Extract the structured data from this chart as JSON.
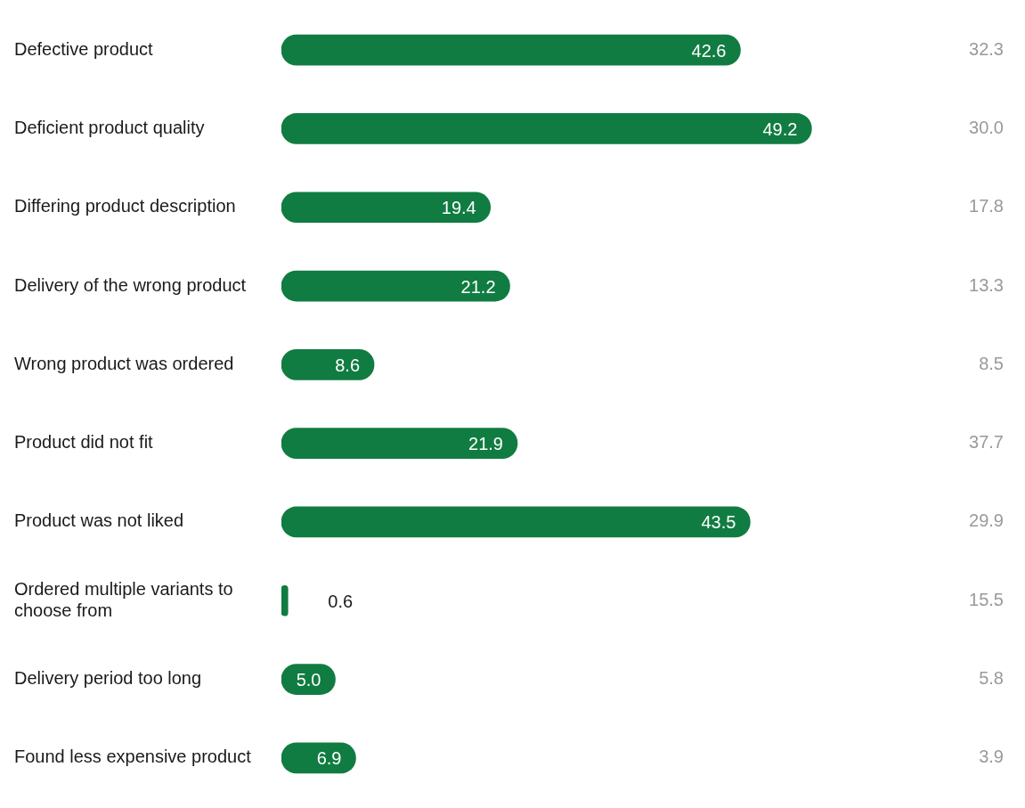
{
  "chart_data": {
    "type": "bar",
    "orientation": "horizontal",
    "categories": [
      "Defective product",
      "Deficient product quality",
      "Differing product description",
      "Delivery of the wrong product",
      "Wrong product was ordered",
      "Product did not fit",
      "Product was not liked",
      "Ordered multiple variants to choose from",
      "Delivery period too long",
      "Found less expensive product"
    ],
    "values": [
      42.6,
      49.2,
      19.4,
      21.2,
      8.6,
      21.9,
      43.5,
      0.6,
      5.0,
      6.9
    ],
    "value_labels": [
      "42.6",
      "49.2",
      "19.4",
      "21.2",
      "8.6",
      "21.9",
      "43.5",
      "0.6",
      "5.0",
      "6.9"
    ],
    "color": "#107c41",
    "tick_labels": "y",
    "grid": false,
    "legend": false,
    "annotations": [
      "32.3",
      "30.0",
      "17.8",
      "13.3",
      "8.5",
      "37.7",
      "29.9",
      "15.5",
      "5.8",
      "3.9"
    ]
  }
}
